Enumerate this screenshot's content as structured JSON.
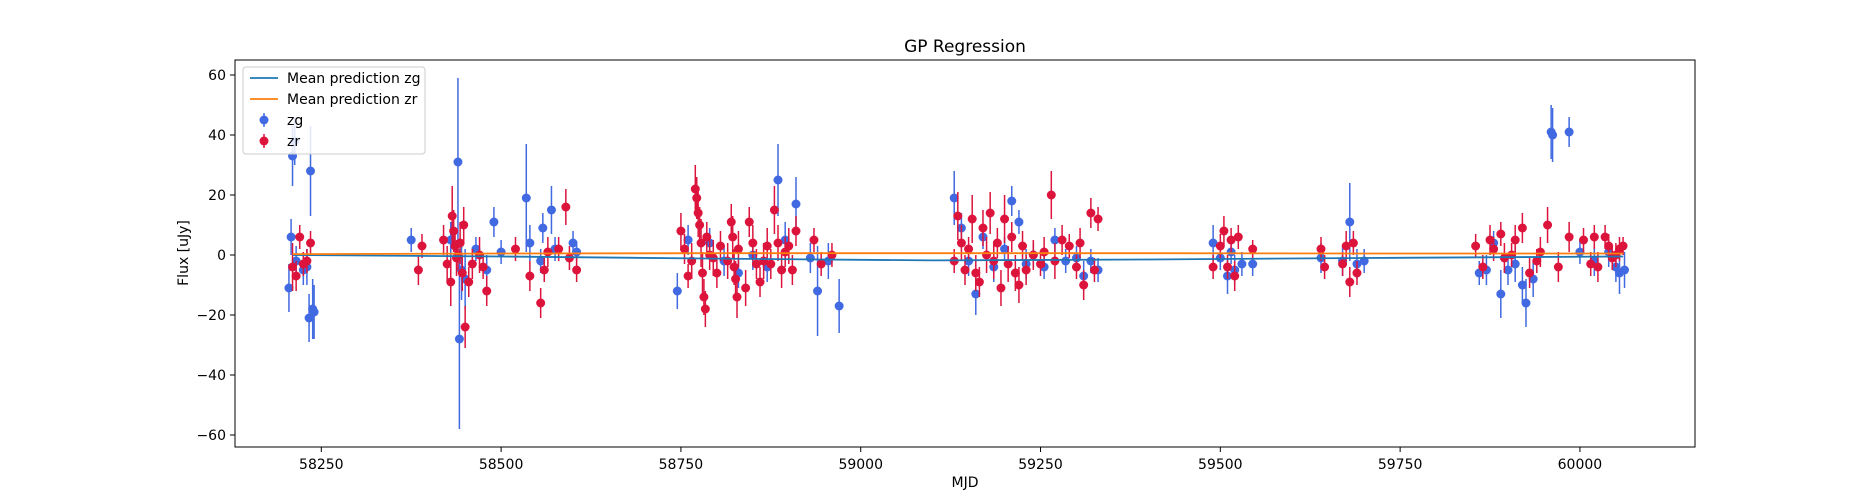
{
  "chart_data": {
    "type": "scatter",
    "title": "GP Regression",
    "xlabel": "MJD",
    "ylabel": "Flux [uJy]",
    "xlim": [
      58130,
      60160
    ],
    "ylim": [
      -64,
      65
    ],
    "xticks": [
      58250,
      58500,
      58750,
      59000,
      59250,
      59500,
      59750,
      60000
    ],
    "yticks": [
      -60,
      -40,
      -20,
      0,
      20,
      40,
      60
    ],
    "grid": false,
    "legend_position": "top-left",
    "legend": [
      "Mean prediction zg",
      "Mean prediction zr",
      "zg",
      "zr"
    ],
    "series": [
      {
        "name": "Mean prediction zg",
        "kind": "line",
        "color": "#1f77b4",
        "x": [
          58210,
          58500,
          58800,
          59100,
          59400,
          59700,
          60060
        ],
        "y": [
          0.0,
          -0.5,
          -1.2,
          -1.8,
          -1.5,
          -1.0,
          -0.5
        ]
      },
      {
        "name": "Mean prediction zr",
        "kind": "line",
        "color": "#ff7f0e",
        "x": [
          58210,
          58500,
          58800,
          59100,
          59400,
          59700,
          60060
        ],
        "y": [
          0.3,
          0.5,
          0.6,
          0.6,
          0.6,
          0.5,
          0.5
        ]
      },
      {
        "name": "zg",
        "kind": "errorbar",
        "color": "#4169e1",
        "points": [
          [
            58205,
            -11,
            8
          ],
          [
            58208,
            6,
            6
          ],
          [
            58210,
            33,
            10
          ],
          [
            58213,
            38,
            8
          ],
          [
            58215,
            -2,
            5
          ],
          [
            58225,
            -5,
            5
          ],
          [
            58230,
            -4,
            6
          ],
          [
            58233,
            -21,
            8
          ],
          [
            58235,
            28,
            15
          ],
          [
            58238,
            -18,
            10
          ],
          [
            58240,
            -19,
            9
          ],
          [
            58375,
            5,
            4
          ],
          [
            58430,
            5,
            6
          ],
          [
            58440,
            31,
            28
          ],
          [
            58442,
            -28,
            30
          ],
          [
            58445,
            -5,
            10
          ],
          [
            58450,
            -8,
            10
          ],
          [
            58465,
            2,
            4
          ],
          [
            58480,
            -5,
            5
          ],
          [
            58490,
            11,
            5
          ],
          [
            58500,
            1,
            4
          ],
          [
            58535,
            19,
            18
          ],
          [
            58540,
            4,
            6
          ],
          [
            58555,
            -2,
            4
          ],
          [
            58558,
            9,
            5
          ],
          [
            58570,
            15,
            8
          ],
          [
            58575,
            2,
            4
          ],
          [
            58600,
            4,
            4
          ],
          [
            58605,
            1,
            3
          ],
          [
            58745,
            -12,
            6
          ],
          [
            58760,
            5,
            5
          ],
          [
            58790,
            4,
            5
          ],
          [
            58810,
            -2,
            5
          ],
          [
            58830,
            -6,
            5
          ],
          [
            58850,
            0,
            5
          ],
          [
            58870,
            -4,
            5
          ],
          [
            58885,
            25,
            12
          ],
          [
            58895,
            5,
            6
          ],
          [
            58910,
            17,
            9
          ],
          [
            58930,
            -1,
            5
          ],
          [
            58940,
            -12,
            15
          ],
          [
            58955,
            -2,
            6
          ],
          [
            58970,
            -17,
            9
          ],
          [
            59130,
            19,
            9
          ],
          [
            59140,
            9,
            5
          ],
          [
            59150,
            -2,
            5
          ],
          [
            59160,
            -13,
            7
          ],
          [
            59170,
            6,
            4
          ],
          [
            59185,
            -4,
            5
          ],
          [
            59200,
            2,
            4
          ],
          [
            59210,
            18,
            5
          ],
          [
            59220,
            11,
            4
          ],
          [
            59230,
            -3,
            5
          ],
          [
            59240,
            0,
            4
          ],
          [
            59255,
            -4,
            4
          ],
          [
            59270,
            5,
            4
          ],
          [
            59285,
            -2,
            4
          ],
          [
            59300,
            -1,
            4
          ],
          [
            59310,
            -7,
            5
          ],
          [
            59320,
            -2,
            4
          ],
          [
            59330,
            -5,
            4
          ],
          [
            59490,
            4,
            6
          ],
          [
            59500,
            -1,
            4
          ],
          [
            59510,
            -7,
            6
          ],
          [
            59515,
            1,
            4
          ],
          [
            59520,
            -5,
            5
          ],
          [
            59530,
            -3,
            4
          ],
          [
            59545,
            -3,
            4
          ],
          [
            59640,
            -1,
            5
          ],
          [
            59670,
            -2,
            5
          ],
          [
            59680,
            11,
            13
          ],
          [
            59690,
            -3,
            5
          ],
          [
            59700,
            -2,
            4
          ],
          [
            59860,
            -6,
            4
          ],
          [
            59870,
            -5,
            5
          ],
          [
            59880,
            4,
            4
          ],
          [
            59890,
            -13,
            8
          ],
          [
            59900,
            -5,
            5
          ],
          [
            59910,
            -3,
            6
          ],
          [
            59920,
            -10,
            6
          ],
          [
            59925,
            -16,
            8
          ],
          [
            59935,
            -8,
            6
          ],
          [
            59960,
            41,
            9
          ],
          [
            59962,
            40,
            9
          ],
          [
            59985,
            41,
            5
          ],
          [
            60000,
            1,
            4
          ],
          [
            60020,
            -2,
            5
          ],
          [
            60040,
            1,
            5
          ],
          [
            60050,
            -4,
            5
          ],
          [
            60055,
            -6,
            7
          ],
          [
            60062,
            -5,
            6
          ]
        ]
      },
      {
        "name": "zr",
        "kind": "errorbar",
        "color": "#dc143c",
        "points": [
          [
            58210,
            -4,
            8
          ],
          [
            58215,
            -7,
            5
          ],
          [
            58220,
            6,
            4
          ],
          [
            58225,
            -3,
            4
          ],
          [
            58230,
            -2,
            4
          ],
          [
            58235,
            4,
            4
          ],
          [
            58385,
            -5,
            5
          ],
          [
            58390,
            3,
            4
          ],
          [
            58420,
            5,
            5
          ],
          [
            58425,
            -3,
            6
          ],
          [
            58430,
            -9,
            8
          ],
          [
            58432,
            13,
            10
          ],
          [
            58434,
            8,
            7
          ],
          [
            58436,
            3,
            5
          ],
          [
            58438,
            -1,
            6
          ],
          [
            58440,
            0,
            5
          ],
          [
            58443,
            4,
            7
          ],
          [
            58446,
            -6,
            6
          ],
          [
            58448,
            10,
            6
          ],
          [
            58450,
            -24,
            7
          ],
          [
            58455,
            -9,
            5
          ],
          [
            58460,
            -3,
            5
          ],
          [
            58470,
            0,
            6
          ],
          [
            58475,
            -4,
            4
          ],
          [
            58480,
            -12,
            5
          ],
          [
            58520,
            2,
            4
          ],
          [
            58540,
            -7,
            5
          ],
          [
            58555,
            -16,
            5
          ],
          [
            58560,
            -5,
            4
          ],
          [
            58565,
            1,
            5
          ],
          [
            58580,
            2,
            4
          ],
          [
            58590,
            16,
            6
          ],
          [
            58595,
            -1,
            4
          ],
          [
            58605,
            -5,
            4
          ],
          [
            58750,
            8,
            6
          ],
          [
            58755,
            2,
            5
          ],
          [
            58760,
            -7,
            4
          ],
          [
            58765,
            -2,
            6
          ],
          [
            58770,
            22,
            8
          ],
          [
            58772,
            19,
            7
          ],
          [
            58774,
            14,
            8
          ],
          [
            58776,
            10,
            6
          ],
          [
            58778,
            4,
            8
          ],
          [
            58780,
            -6,
            7
          ],
          [
            58782,
            -14,
            6
          ],
          [
            58784,
            -18,
            6
          ],
          [
            58786,
            6,
            5
          ],
          [
            58790,
            0,
            5
          ],
          [
            58795,
            -1,
            6
          ],
          [
            58800,
            -6,
            5
          ],
          [
            58805,
            3,
            5
          ],
          [
            58815,
            -2,
            6
          ],
          [
            58820,
            11,
            6
          ],
          [
            58822,
            6,
            7
          ],
          [
            58824,
            -4,
            6
          ],
          [
            58826,
            -8,
            6
          ],
          [
            58828,
            -14,
            7
          ],
          [
            58830,
            2,
            6
          ],
          [
            58840,
            -11,
            6
          ],
          [
            58845,
            11,
            5
          ],
          [
            58850,
            4,
            6
          ],
          [
            58855,
            -3,
            5
          ],
          [
            58860,
            -9,
            5
          ],
          [
            58865,
            -2,
            6
          ],
          [
            58870,
            3,
            6
          ],
          [
            58875,
            -3,
            5
          ],
          [
            58880,
            15,
            8
          ],
          [
            58885,
            4,
            6
          ],
          [
            58890,
            -5,
            6
          ],
          [
            58895,
            1,
            5
          ],
          [
            58900,
            3,
            6
          ],
          [
            58905,
            -5,
            5
          ],
          [
            58910,
            8,
            5
          ],
          [
            58935,
            5,
            4
          ],
          [
            58945,
            -3,
            4
          ],
          [
            58960,
            0,
            4
          ],
          [
            59130,
            -2,
            4
          ],
          [
            59135,
            13,
            8
          ],
          [
            59140,
            4,
            6
          ],
          [
            59145,
            -5,
            5
          ],
          [
            59150,
            2,
            4
          ],
          [
            59155,
            12,
            8
          ],
          [
            59160,
            -6,
            6
          ],
          [
            59165,
            -9,
            5
          ],
          [
            59170,
            9,
            6
          ],
          [
            59175,
            0,
            6
          ],
          [
            59180,
            14,
            7
          ],
          [
            59185,
            -2,
            6
          ],
          [
            59190,
            4,
            5
          ],
          [
            59195,
            -11,
            6
          ],
          [
            59200,
            12,
            8
          ],
          [
            59205,
            -3,
            6
          ],
          [
            59210,
            6,
            5
          ],
          [
            59215,
            -6,
            6
          ],
          [
            59220,
            -10,
            6
          ],
          [
            59225,
            3,
            5
          ],
          [
            59230,
            -5,
            5
          ],
          [
            59240,
            0,
            5
          ],
          [
            59250,
            -3,
            4
          ],
          [
            59255,
            1,
            5
          ],
          [
            59265,
            20,
            8
          ],
          [
            59270,
            -2,
            6
          ],
          [
            59280,
            5,
            5
          ],
          [
            59290,
            3,
            4
          ],
          [
            59300,
            -4,
            4
          ],
          [
            59305,
            4,
            5
          ],
          [
            59310,
            -10,
            5
          ],
          [
            59320,
            14,
            5
          ],
          [
            59325,
            -5,
            4
          ],
          [
            59330,
            12,
            4
          ],
          [
            59490,
            -4,
            4
          ],
          [
            59500,
            3,
            4
          ],
          [
            59505,
            8,
            5
          ],
          [
            59510,
            -4,
            4
          ],
          [
            59515,
            5,
            4
          ],
          [
            59520,
            -7,
            5
          ],
          [
            59525,
            6,
            4
          ],
          [
            59545,
            2,
            3
          ],
          [
            59640,
            2,
            4
          ],
          [
            59645,
            -4,
            4
          ],
          [
            59670,
            -3,
            4
          ],
          [
            59675,
            3,
            5
          ],
          [
            59680,
            -9,
            5
          ],
          [
            59685,
            4,
            4
          ],
          [
            59690,
            -6,
            4
          ],
          [
            59855,
            3,
            4
          ],
          [
            59865,
            -4,
            4
          ],
          [
            59875,
            5,
            5
          ],
          [
            59880,
            2,
            4
          ],
          [
            59890,
            7,
            4
          ],
          [
            59895,
            -1,
            5
          ],
          [
            59905,
            0,
            4
          ],
          [
            59910,
            5,
            5
          ],
          [
            59920,
            9,
            5
          ],
          [
            59930,
            -6,
            5
          ],
          [
            59940,
            -2,
            4
          ],
          [
            59945,
            1,
            5
          ],
          [
            59955,
            10,
            6
          ],
          [
            59970,
            -4,
            5
          ],
          [
            59985,
            6,
            5
          ],
          [
            60005,
            5,
            4
          ],
          [
            60015,
            -3,
            4
          ],
          [
            60020,
            6,
            4
          ],
          [
            60025,
            -4,
            5
          ],
          [
            60035,
            6,
            4
          ],
          [
            60040,
            3,
            4
          ],
          [
            60045,
            -1,
            4
          ],
          [
            60050,
            0,
            4
          ],
          [
            60055,
            2,
            4
          ],
          [
            60060,
            3,
            3
          ]
        ]
      }
    ]
  }
}
